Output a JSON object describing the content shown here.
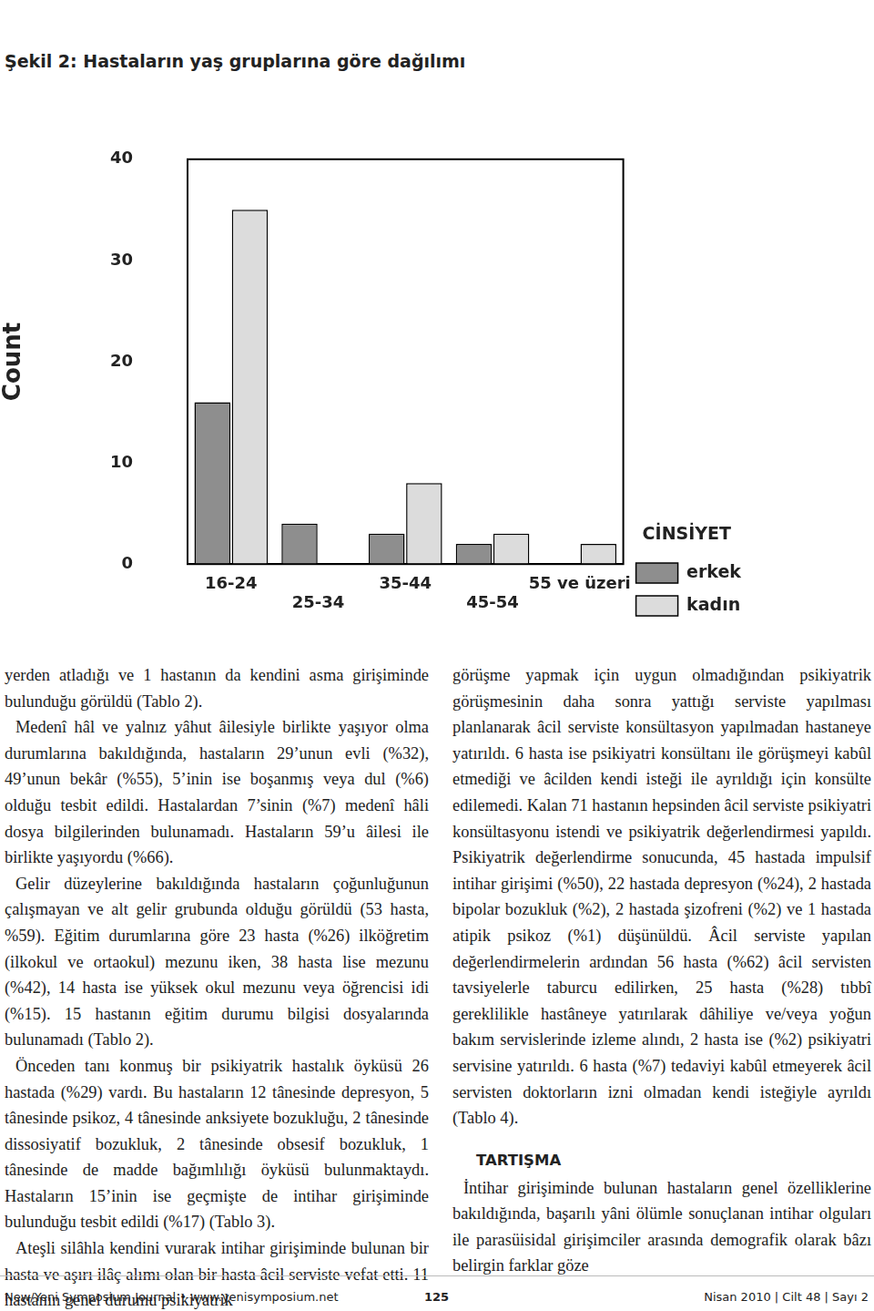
{
  "chart_data": {
    "type": "bar",
    "title": "Şekil 2: Hastaların yaş gruplarına göre dağılımı",
    "y_label": "Count",
    "categories": [
      "16-24",
      "25-34",
      "35-44",
      "45-54",
      "55 ve üzeri"
    ],
    "series": [
      {
        "name": "erkek",
        "color": "#8e8e8e",
        "values": [
          16,
          4,
          3,
          2,
          0
        ]
      },
      {
        "name": "kadın",
        "color": "#dcdcdc",
        "values": [
          35,
          0,
          8,
          3,
          2
        ]
      }
    ],
    "legend_title": "CİNSİYET",
    "legend": "right",
    "grid": false,
    "ylim": [
      0,
      40
    ],
    "yticks": [
      0,
      10,
      20,
      30,
      40
    ]
  },
  "left_column": [
    {
      "p": "yerden atladığı ve 1 hastanın da kendini asma girişiminde bulunduğu görüldü (Tablo 2)."
    },
    {
      "p": "Medenî hâl ve yalnız yâhut âilesiyle birlikte yaşıyor olma durumlarına bakıldığında, hastaların 29’unun evli (%32), 49’unun bekâr (%55), 5’inin ise boşanmış veya dul (%6) olduğu tesbit edildi. Hastalardan 7’sinin (%7) medenî hâli dosya bilgilerinden bulunamadı. Hastaların 59’u âilesi ile birlikte yaşıyordu (%66)."
    },
    {
      "p": "Gelir düzeylerine bakıldığında hastaların çoğunluğunun çalışmayan ve alt gelir grubunda olduğu görüldü (53 hasta, %59). Eğitim durumlarına göre 23 hasta (%26) ilköğretim (ilkokul ve ortaokul) mezunu iken, 38 hasta lise mezunu (%42), 14 hasta ise yüksek okul mezunu veya öğrencisi idi (%15). 15 hastanın eğitim durumu bilgisi dosyalarında bulunamadı (Tablo 2)."
    },
    {
      "p": "Önceden tanı konmuş bir psikiyatrik hastalık öyküsü 26 hastada (%29) vardı. Bu hastaların 12 tânesinde depresyon, 5 tânesinde psikoz, 4 tânesinde anksiyete bozukluğu, 2 tânesinde dissosiyatif bozukluk, 2 tânesinde obsesif bozukluk, 1 tânesinde de madde bağımlılığı öyküsü bulunmaktaydı. Hastaların 15’inin ise geçmişte de intihar girişiminde bulunduğu tesbit edildi (%17) (Tablo 3)."
    },
    {
      "p": "Ateşli silâhla kendini vurarak intihar girişiminde bulunan bir hasta ve aşırı ilâç alımı olan bir hasta âcil serviste vefat etti. 11 hastanın genel durumu psikiyatrik"
    }
  ],
  "right_column": [
    {
      "p": "görüşme yapmak için uygun olmadığından psikiyatrik görüşmesinin daha sonra yattığı serviste yapılması planlanarak âcil serviste konsültasyon yapılmadan hastaneye yatırıldı. 6 hasta ise psikiyatri konsültanı ile görüşmeyi kabûl etmediği ve âcilden kendi isteği ile ayrıldığı için konsülte edilemedi. Kalan 71 hastanın hepsinden âcil serviste psikiyatri konsültasyonu istendi ve psikiyatrik değerlendirmesi yapıldı. Psikiyatrik değerlendirme sonucunda, 45 hastada impulsif intihar girişimi (%50), 22 hastada depresyon (%24), 2 hastada bipolar bozukluk (%2), 2 hastada şizofreni (%2) ve 1 hastada atipik psikoz (%1) düşünüldü. Âcil serviste yapılan değerlendirmelerin ardından 56 hasta (%62) âcil servisten tavsiyelerle taburcu edilirken, 25 hasta (%28) tıbbî gereklilikle hastâneye yatırılarak dâhiliye ve/veya yoğun bakım servislerinde izleme alındı, 2 hasta ise (%2) psikiyatri servisine yatırıldı. 6 hasta (%7) tedaviyi kabûl etmeyerek âcil servisten doktorların izni olmadan kendi isteğiyle ayrıldı (Tablo 4)."
    },
    {
      "h": "TARTIŞMA"
    },
    {
      "p": "İntihar girişiminde bulunan hastaların genel özelliklerine bakıldığında, başarılı yâni ölümle sonuçlanan intihar olguları ile parasüisidal girişimciler arasında demografik olarak bâzı belirgin farklar göze"
    }
  ],
  "footer": {
    "left": "New/Yeni Symposium Journal • www.yenisymposium.net",
    "page": "125",
    "right": "Nisan 2010 | Cilt 48 | Sayı 2"
  }
}
